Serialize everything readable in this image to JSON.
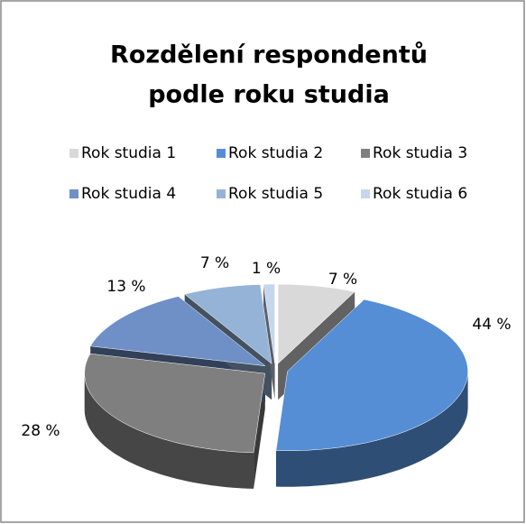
{
  "chart_data": {
    "type": "pie3d",
    "title": [
      "Rozdělení respondentů",
      "podle roku studia"
    ],
    "categories": [
      "Rok studia 1",
      "Rok studia 2",
      "Rok studia 3",
      "Rok studia 4",
      "Rok studia 5",
      "Rok studia 6"
    ],
    "values": [
      7,
      44,
      28,
      13,
      7,
      1
    ],
    "value_labels": [
      "7 %",
      "44 %",
      "28 %",
      "13 %",
      "7 %",
      "1 %"
    ],
    "colors": [
      "#d9d9d9",
      "#558ed5",
      "#7f7f7f",
      "#6f8fc7",
      "#95b3d7",
      "#c6d6ec"
    ],
    "legend": "top"
  }
}
